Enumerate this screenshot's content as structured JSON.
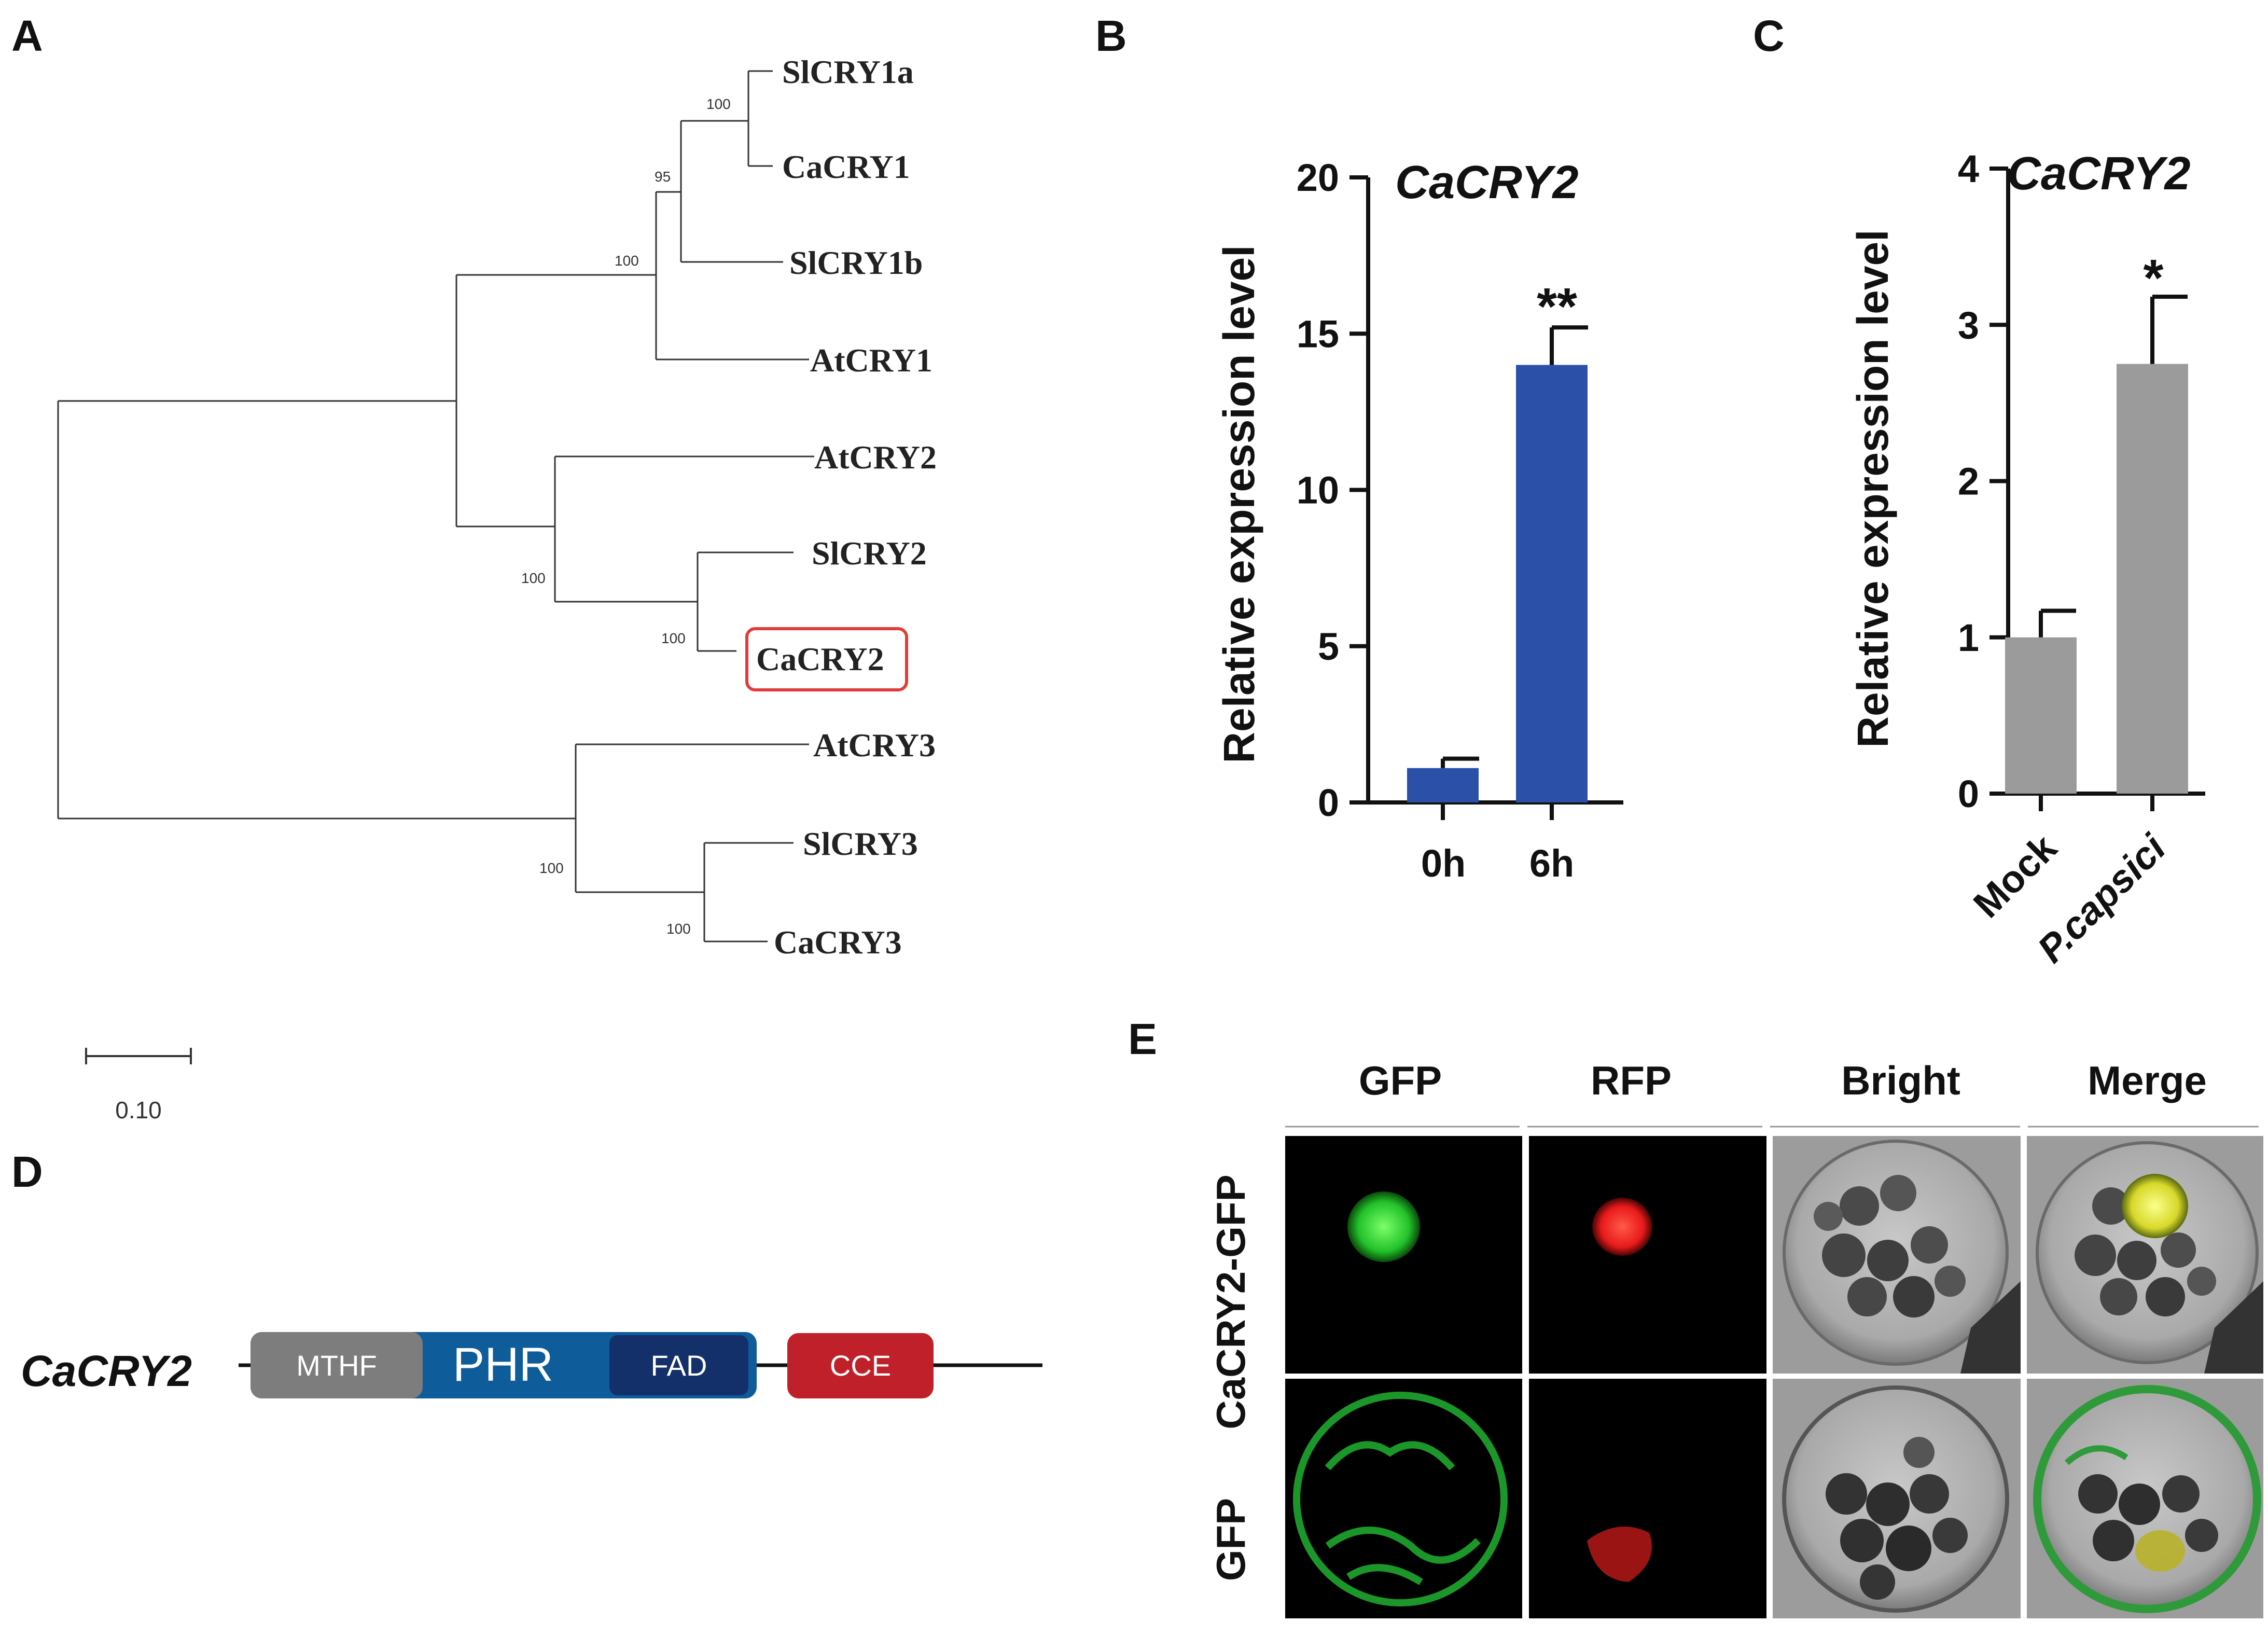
{
  "panels": {
    "a": "A",
    "b": "B",
    "c": "C",
    "d": "D",
    "e": "E"
  },
  "tree": {
    "leaves": [
      "SlCRY1a",
      "CaCRY1",
      "SlCRY1b",
      "AtCRY1",
      "AtCRY2",
      "SlCRY2",
      "CaCRY2",
      "AtCRY3",
      "SlCRY3",
      "CaCRY3"
    ],
    "highlighted_leaf": "CaCRY2",
    "bootstrap": {
      "n1": "100",
      "n2": "95",
      "n3": "100",
      "n4": "100",
      "n5": "100",
      "n6": "100",
      "n7": "100"
    },
    "scale_label": "0.10",
    "highlight_color": "#e23b3b"
  },
  "chart_b": {
    "chart_data": {
      "type": "bar",
      "title": "CaCRY2",
      "ylabel": "Relative expression level",
      "xlabel": "",
      "categories": [
        "0h",
        "6h"
      ],
      "values": [
        1.1,
        14.0
      ],
      "errors": [
        0.3,
        1.2
      ],
      "significance": [
        "",
        "**"
      ],
      "ylim": [
        0,
        20
      ],
      "yticks": [
        "0",
        "5",
        "10",
        "15",
        "20"
      ],
      "bar_color": "#2a50a8"
    }
  },
  "chart_c": {
    "chart_data": {
      "type": "bar",
      "title": "CaCRY2",
      "ylabel": "Relative expression level",
      "xlabel": "",
      "categories": [
        "Mock",
        "P.capsici"
      ],
      "values": [
        1.0,
        2.75
      ],
      "errors": [
        0.17,
        0.43
      ],
      "significance": [
        "",
        "*"
      ],
      "ylim": [
        0,
        4
      ],
      "yticks": [
        "0",
        "1",
        "2",
        "3",
        "4"
      ],
      "bar_color": "#9b9b9b"
    }
  },
  "domain_diagram": {
    "gene": "CaCRY2",
    "domains": {
      "mthf": "MTHF",
      "phr": "PHR",
      "fad": "FAD",
      "cce": "CCE"
    },
    "colors": {
      "phr": "#0e5c9a",
      "mthf": "#7d7d7d",
      "fad": "#14306a",
      "cce": "#c0202a"
    }
  },
  "microscopy": {
    "columns": [
      "GFP",
      "RFP",
      "Bright",
      "Merge"
    ],
    "rows": [
      "CaCRY2-GFP",
      "GFP"
    ]
  }
}
